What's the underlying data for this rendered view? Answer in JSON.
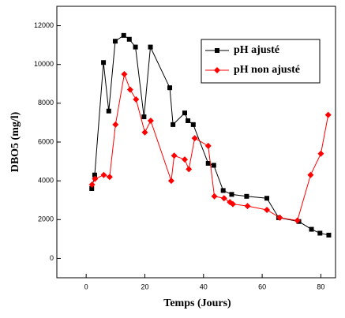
{
  "chart_data": {
    "type": "line",
    "xlabel": "Temps (Jours)",
    "ylabel": "DBO5 (mg/l)",
    "xlim": [
      -10,
      85
    ],
    "xticks": [
      0,
      20,
      40,
      60,
      80
    ],
    "ylim": [
      -1000,
      13000
    ],
    "yticks": [
      0,
      2000,
      4000,
      6000,
      8000,
      10000,
      12000
    ],
    "grid": false,
    "legend": "upper right",
    "series": [
      {
        "name": "pH ajusté",
        "color": "#000000",
        "marker": "square",
        "x": [
          1.9,
          2.9,
          5.9,
          7.7,
          9.9,
          12.8,
          14.7,
          16.8,
          19.7,
          21.9,
          28.5,
          29.6,
          33.6,
          34.7,
          36.5,
          41.6,
          43.5,
          46.7,
          49.6,
          54.7,
          61.6,
          65.6,
          72.5,
          76.8,
          79.7,
          82.7
        ],
        "values": [
          3600,
          4300,
          10100,
          7600,
          11200,
          11500,
          11300,
          10900,
          7300,
          10900,
          8800,
          6900,
          7500,
          7100,
          6900,
          4900,
          4800,
          3500,
          3300,
          3200,
          3100,
          2100,
          1900,
          1500,
          1300,
          1200
        ]
      },
      {
        "name": "pH non ajusté",
        "color": "#ff0000",
        "marker": "diamond",
        "x": [
          2,
          3,
          6,
          8,
          10,
          13,
          15,
          17,
          20,
          22,
          29,
          30,
          33.6,
          35,
          37,
          41.6,
          43.7,
          47,
          49,
          50,
          55,
          61.6,
          66,
          72,
          76.5,
          80,
          82.5
        ],
        "values": [
          3800,
          4100,
          4300,
          4200,
          6900,
          9500,
          8700,
          8200,
          6500,
          7100,
          4000,
          5300,
          5100,
          4600,
          6200,
          5800,
          3200,
          3100,
          2900,
          2800,
          2700,
          2500,
          2100,
          1950,
          4300,
          5400,
          7400
        ]
      }
    ]
  }
}
